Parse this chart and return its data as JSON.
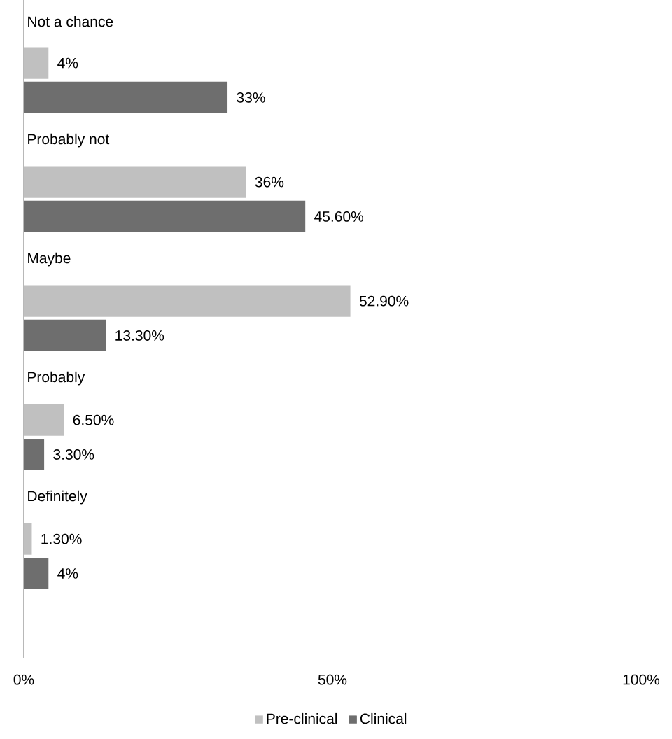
{
  "chart_data": {
    "type": "bar",
    "orientation": "horizontal",
    "categories": [
      "Not a chance",
      "Probably not",
      "Maybe",
      "Probably",
      "Definitely"
    ],
    "series": [
      {
        "name": "Pre-clinical",
        "color": "#c0c0c0",
        "values": [
          4,
          36,
          52.9,
          6.5,
          1.3
        ],
        "value_labels": [
          "4%",
          "36%",
          "52.90%",
          "6.50%",
          "1.30%"
        ]
      },
      {
        "name": "Clinical",
        "color": "#6e6e6e",
        "values": [
          33,
          45.6,
          13.3,
          3.3,
          4
        ],
        "value_labels": [
          "33%",
          "45.60%",
          "13.30%",
          "3.30%",
          "4%"
        ]
      }
    ],
    "xlim": [
      0,
      100
    ],
    "xticks": [
      {
        "value": 0,
        "label": "0%"
      },
      {
        "value": 50,
        "label": "50%"
      },
      {
        "value": 100,
        "label": "100%"
      }
    ],
    "grid": false,
    "legend": "bottom"
  }
}
